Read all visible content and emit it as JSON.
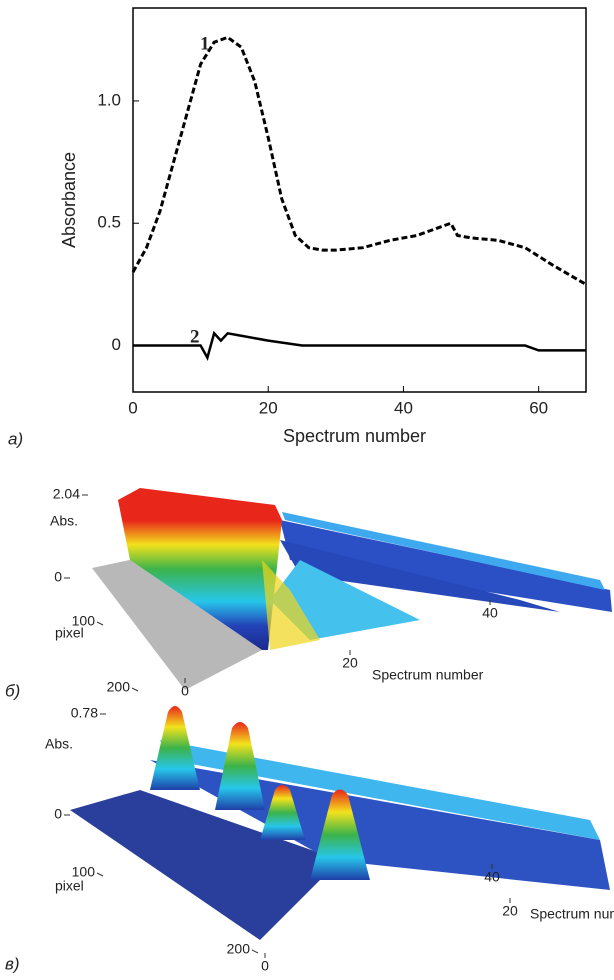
{
  "chart_data": [
    {
      "type": "line",
      "panel_label": "a)",
      "xlabel": "Spectrum number",
      "ylabel": "Absorbance",
      "xlim": [
        0,
        67
      ],
      "ylim": [
        -0.19,
        1.38
      ],
      "xticks": [
        0,
        20,
        40,
        60
      ],
      "yticks": [
        0,
        0.5,
        {
          "value": 1,
          "label": "1.0"
        }
      ],
      "annotations": [
        "1",
        "2"
      ],
      "series": [
        {
          "name": "1",
          "color": "#000000",
          "line_style": "dashed",
          "x": [
            0,
            2,
            4,
            6,
            8,
            10,
            12,
            14,
            16,
            18,
            20,
            22,
            24,
            26,
            28,
            30,
            34,
            38,
            42,
            46,
            47,
            48,
            50,
            54,
            58,
            62,
            67
          ],
          "values": [
            0.3,
            0.4,
            0.55,
            0.75,
            0.95,
            1.15,
            1.24,
            1.26,
            1.22,
            1.08,
            0.85,
            0.6,
            0.45,
            0.4,
            0.39,
            0.39,
            0.4,
            0.43,
            0.45,
            0.49,
            0.5,
            0.45,
            0.44,
            0.43,
            0.4,
            0.33,
            0.25
          ]
        },
        {
          "name": "2",
          "color": "#000000",
          "line_style": "solid",
          "x": [
            0,
            10,
            11,
            12,
            13,
            14,
            16,
            20,
            25,
            40,
            58,
            60,
            67
          ],
          "values": [
            0,
            0,
            -0.05,
            0.05,
            0.02,
            0.05,
            0.04,
            0.02,
            0,
            0,
            0,
            -0.02,
            -0.02
          ]
        }
      ]
    },
    {
      "type": "surface3d",
      "panel_label": "б)",
      "xlabel": "Spectrum number",
      "zlabel": "Abs.",
      "ylabel": "pixel",
      "zticks": [
        0,
        2.04
      ],
      "yticks": [
        100,
        200
      ],
      "xticks": [
        0,
        20,
        40
      ]
    },
    {
      "type": "surface3d",
      "panel_label": "в)",
      "xlabel": "Spectrum number",
      "zlabel": "Abs.",
      "ylabel": "pixel",
      "zticks": [
        0,
        0.78
      ],
      "yticks": [
        100,
        200
      ],
      "xticks": [
        0,
        20,
        40
      ]
    }
  ]
}
